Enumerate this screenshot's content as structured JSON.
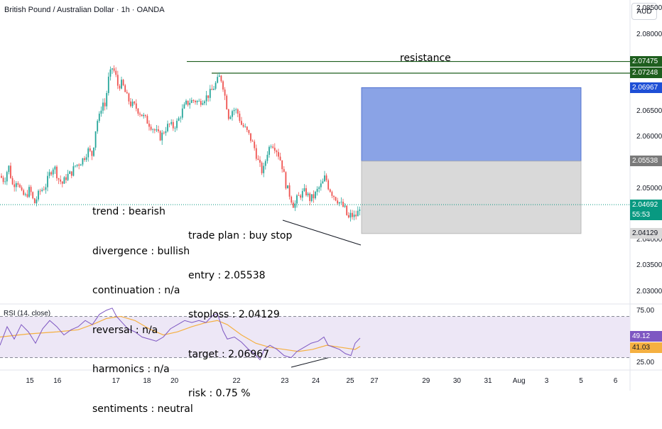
{
  "header": {
    "title": "British Pound / Australian Dollar · 1h · OANDA",
    "currency_button": "AUD"
  },
  "annotations": {
    "resistance": "resistance",
    "analysis": [
      "trend : bearish",
      "divergence : bullish",
      "continuation : n/a",
      "reversal : n/a",
      "harmonics : n/a",
      "sentiments : neutral"
    ],
    "trade_plan": [
      "trade plan : buy stop",
      "entry : 2.05538",
      "stoploss : 2.04129",
      "target : 2.06967",
      "risk : 0.75 %"
    ]
  },
  "colors": {
    "up": "#26a69a",
    "down": "#ef5350",
    "resistance_line": "#1e5e1e",
    "target_zone": "#8aa3e6",
    "stop_zone": "#d9d9d9",
    "rsi_line": "#7e57c2",
    "rsi_ma": "#f5b041",
    "rsi_band": "#ede7f6"
  },
  "rsi": {
    "label": "RSI (14, close)",
    "value": "49.12",
    "ma_value": "41.03"
  },
  "countdown": "55:53",
  "chart_data": {
    "type": "candlestick",
    "y_ticks": [
      2.085,
      2.08,
      2.075,
      2.07,
      2.065,
      2.06,
      2.055,
      2.05,
      2.045,
      2.04,
      2.035,
      2.03
    ],
    "y_tick_labels": [
      "2.08500",
      "2.08000",
      "2.07500",
      "2.07000",
      "2.06500",
      "2.06000",
      "2.05500",
      "2.05000",
      "2.04500",
      "2.04000",
      "2.03500",
      "2.03000"
    ],
    "ylim": [
      2.0276,
      2.0867
    ],
    "x_tick_labels": [
      "15",
      "16",
      "17",
      "18",
      "20",
      "22",
      "23",
      "24",
      "25",
      "27",
      "29",
      "30",
      "31",
      "Aug",
      "3",
      "5",
      "6"
    ],
    "x_tick_index": [
      0,
      0.8,
      2.5,
      3.4,
      4.2,
      6,
      7.4,
      8.3,
      9.3,
      10,
      11.5,
      12.4,
      13.3,
      14.2,
      15.0,
      16.0,
      17.0
    ],
    "price_lines": [
      {
        "label": "2.07475",
        "value": 2.07475,
        "bg": "#1e5e1e",
        "fg": "#ffffff"
      },
      {
        "label": "2.07248",
        "value": 2.07248,
        "bg": "#1e5e1e",
        "fg": "#ffffff"
      },
      {
        "label": "2.06967",
        "value": 2.06967,
        "bg": "#1e4fd6",
        "fg": "#ffffff"
      },
      {
        "label": "2.05538",
        "value": 2.05538,
        "bg": "#7a7a7a",
        "fg": "#ffffff"
      },
      {
        "label": "2.04692",
        "value": 2.04692,
        "bg": "#089981",
        "fg": "#ffffff"
      },
      {
        "label": "2.04129",
        "value": 2.04129,
        "bg": "#d9d9d9",
        "fg": "#131722"
      }
    ],
    "current_price": 2.04692,
    "trade_zone": {
      "entry": 2.05538,
      "stoploss": 2.04129,
      "target": 2.06967
    },
    "price_path": [
      [
        0,
        2.0525
      ],
      [
        6,
        2.0515
      ],
      [
        12,
        2.0545
      ],
      [
        18,
        2.0505
      ],
      [
        24,
        2.052
      ],
      [
        30,
        2.049
      ],
      [
        36,
        2.0485
      ],
      [
        42,
        2.05
      ],
      [
        48,
        2.047
      ],
      [
        56,
        2.0495
      ],
      [
        64,
        2.0505
      ],
      [
        70,
        2.053
      ],
      [
        76,
        2.0545
      ],
      [
        82,
        2.052
      ],
      [
        88,
        2.051
      ],
      [
        94,
        2.0525
      ],
      [
        100,
        2.053
      ],
      [
        106,
        2.0545
      ],
      [
        112,
        2.055
      ],
      [
        118,
        2.056
      ],
      [
        124,
        2.0575
      ],
      [
        130,
        2.0565
      ],
      [
        136,
        2.063
      ],
      [
        140,
        2.064
      ],
      [
        144,
        2.067
      ],
      [
        148,
        2.066
      ],
      [
        152,
        2.071
      ],
      [
        158,
        2.0735
      ],
      [
        162,
        2.0725
      ],
      [
        166,
        2.07
      ],
      [
        172,
        2.0705
      ],
      [
        178,
        2.068
      ],
      [
        184,
        2.0665
      ],
      [
        190,
        2.066
      ],
      [
        196,
        2.065
      ],
      [
        202,
        2.064
      ],
      [
        208,
        2.063
      ],
      [
        214,
        2.062
      ],
      [
        220,
        2.061
      ],
      [
        226,
        2.06
      ],
      [
        232,
        2.0615
      ],
      [
        238,
        2.0625
      ],
      [
        244,
        2.062
      ],
      [
        250,
        2.063
      ],
      [
        256,
        2.065
      ],
      [
        262,
        2.0665
      ],
      [
        268,
        2.067
      ],
      [
        274,
        2.0672
      ],
      [
        280,
        2.0668
      ],
      [
        286,
        2.0675
      ],
      [
        292,
        2.068
      ],
      [
        298,
        2.069
      ],
      [
        304,
        2.0705
      ],
      [
        310,
        2.072
      ],
      [
        314,
        2.07
      ],
      [
        318,
        2.067
      ],
      [
        322,
        2.064
      ],
      [
        328,
        2.0655
      ],
      [
        334,
        2.065
      ],
      [
        340,
        2.0625
      ],
      [
        346,
        2.0615
      ],
      [
        352,
        2.06
      ],
      [
        358,
        2.058
      ],
      [
        364,
        2.055
      ],
      [
        370,
        2.053
      ],
      [
        376,
        2.057
      ],
      [
        382,
        2.059
      ],
      [
        388,
        2.058
      ],
      [
        394,
        2.056
      ],
      [
        398,
        2.054
      ],
      [
        402,
        2.051
      ],
      [
        406,
        2.0495
      ],
      [
        410,
        2.048
      ],
      [
        414,
        2.0465
      ],
      [
        418,
        2.048
      ],
      [
        424,
        2.049
      ],
      [
        430,
        2.0495
      ],
      [
        436,
        2.048
      ],
      [
        442,
        2.0485
      ],
      [
        448,
        2.05
      ],
      [
        454,
        2.051
      ],
      [
        458,
        2.0525
      ],
      [
        462,
        2.0505
      ],
      [
        468,
        2.049
      ],
      [
        474,
        2.048
      ],
      [
        480,
        2.047
      ],
      [
        486,
        2.046
      ],
      [
        490,
        2.044
      ],
      [
        494,
        2.045
      ],
      [
        498,
        2.0445
      ],
      [
        503,
        2.045
      ],
      [
        507,
        2.0469
      ]
    ],
    "rsi_path": [
      [
        0,
        42
      ],
      [
        10,
        60
      ],
      [
        20,
        48
      ],
      [
        30,
        62
      ],
      [
        40,
        55
      ],
      [
        50,
        44
      ],
      [
        60,
        58
      ],
      [
        70,
        66
      ],
      [
        80,
        60
      ],
      [
        90,
        52
      ],
      [
        100,
        57
      ],
      [
        110,
        60
      ],
      [
        120,
        66
      ],
      [
        130,
        62
      ],
      [
        140,
        72
      ],
      [
        150,
        76
      ],
      [
        158,
        78
      ],
      [
        164,
        70
      ],
      [
        172,
        64
      ],
      [
        180,
        58
      ],
      [
        190,
        55
      ],
      [
        200,
        50
      ],
      [
        210,
        48
      ],
      [
        220,
        46
      ],
      [
        230,
        50
      ],
      [
        240,
        58
      ],
      [
        250,
        62
      ],
      [
        260,
        66
      ],
      [
        270,
        64
      ],
      [
        280,
        66
      ],
      [
        290,
        64
      ],
      [
        298,
        70
      ],
      [
        306,
        73
      ],
      [
        314,
        56
      ],
      [
        320,
        48
      ],
      [
        330,
        50
      ],
      [
        340,
        45
      ],
      [
        350,
        38
      ],
      [
        358,
        34
      ],
      [
        366,
        28
      ],
      [
        372,
        38
      ],
      [
        380,
        42
      ],
      [
        390,
        38
      ],
      [
        400,
        32
      ],
      [
        410,
        30
      ],
      [
        418,
        36
      ],
      [
        428,
        40
      ],
      [
        438,
        44
      ],
      [
        448,
        46
      ],
      [
        456,
        50
      ],
      [
        462,
        42
      ],
      [
        470,
        40
      ],
      [
        478,
        38
      ],
      [
        486,
        34
      ],
      [
        494,
        32
      ],
      [
        500,
        44
      ],
      [
        507,
        49
      ]
    ],
    "rsi_ma_path": [
      [
        0,
        50
      ],
      [
        40,
        53
      ],
      [
        80,
        55
      ],
      [
        110,
        57
      ],
      [
        130,
        62
      ],
      [
        150,
        68
      ],
      [
        170,
        70
      ],
      [
        190,
        66
      ],
      [
        210,
        58
      ],
      [
        230,
        52
      ],
      [
        250,
        55
      ],
      [
        270,
        60
      ],
      [
        290,
        64
      ],
      [
        306,
        66
      ],
      [
        320,
        62
      ],
      [
        340,
        52
      ],
      [
        360,
        44
      ],
      [
        380,
        40
      ],
      [
        400,
        38
      ],
      [
        420,
        36
      ],
      [
        440,
        38
      ],
      [
        460,
        42
      ],
      [
        480,
        40
      ],
      [
        500,
        38
      ],
      [
        507,
        41
      ]
    ],
    "rsi_levels": [
      70,
      30
    ],
    "rsi_range": [
      18,
      82
    ],
    "rsi_ticks": [
      "75.00",
      "25.00"
    ]
  }
}
